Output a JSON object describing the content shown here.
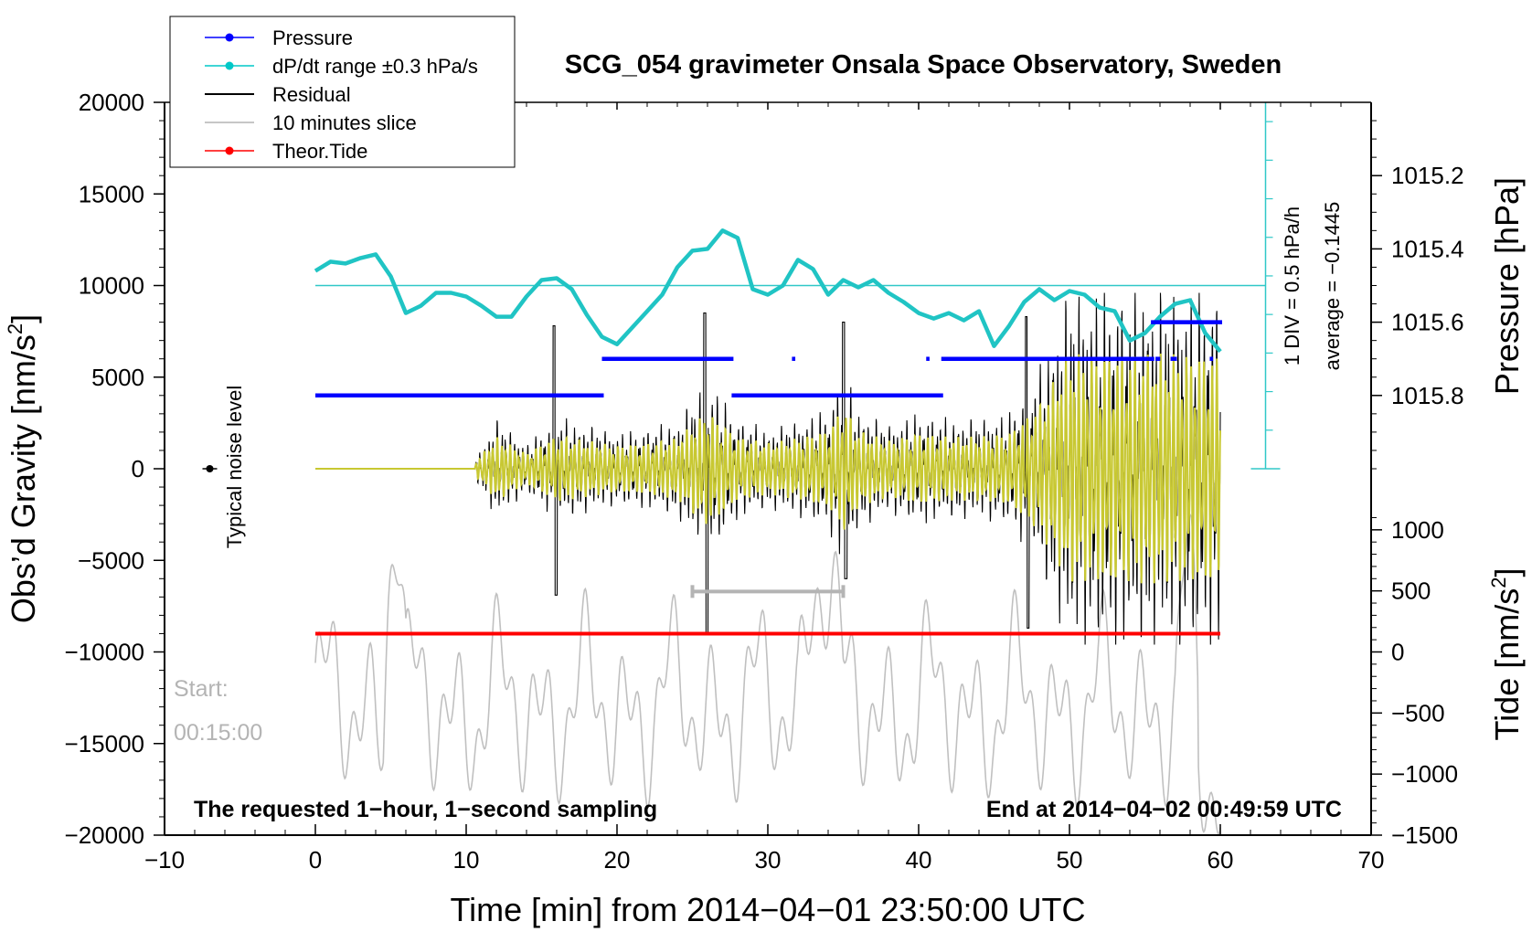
{
  "chart_data": {
    "type": "line",
    "title": "SCG_054 gravimeter Onsala Space Observatory, Sweden",
    "xlabel": "Time [min] from 2014−04−01 23:50:00 UTC",
    "ylabel_left": "Obs’d Gravity [nm/s",
    "ylabel_left_sup": "2",
    "ylabel_left_end": "]",
    "ylabel_right_pressure": "Pressure [hPa]",
    "ylabel_right_tide": "Tide [nm/s",
    "ylabel_right_tide_sup": "2",
    "ylabel_right_tide_end": "]",
    "xlim": [
      -10,
      70
    ],
    "ylim_gravity": [
      -20000,
      20000
    ],
    "ylim_pressure": [
      1015.0,
      1016.0
    ],
    "ylim_tide": [
      -1500,
      1500
    ],
    "x_ticks": [
      -10,
      0,
      10,
      20,
      30,
      40,
      50,
      60,
      70
    ],
    "x_tick_labels": [
      "−10",
      "0",
      "10",
      "20",
      "30",
      "40",
      "50",
      "60",
      "70"
    ],
    "y_ticks_gravity": [
      20000,
      15000,
      10000,
      5000,
      0,
      -5000,
      -10000,
      -15000,
      -20000
    ],
    "y_tick_labels_gravity": [
      "20000",
      "15000",
      "10000",
      "5000",
      "0",
      "−5000",
      "−10000",
      "−15000",
      "−20000"
    ],
    "pressure_ticks": [
      1015.8,
      1015.6,
      1015.4,
      1015.2
    ],
    "pressure_tick_labels": [
      "1015.8",
      "1015.6",
      "1015.4",
      "1015.2"
    ],
    "tide_ticks": [
      1000,
      500,
      0,
      -500,
      -1000,
      -1500
    ],
    "tide_tick_labels": [
      "1000",
      "500",
      "0",
      "−500",
      "−1000",
      "−1500"
    ],
    "legend": [
      {
        "label": "Pressure",
        "color": "#0000ff",
        "marker": true
      },
      {
        "label": "dP/dt range ±0.3 hPa/s",
        "color": "#00c8c8",
        "marker": true
      },
      {
        "label": "Residual",
        "color": "#000000",
        "marker": false
      },
      {
        "label": "10 minutes slice",
        "color": "#b4b4b4",
        "marker": false
      },
      {
        "label": "Theor.Tide",
        "color": "#ff0000",
        "marker": true
      }
    ],
    "pressure_segments": [
      {
        "x": [
          0,
          19
        ],
        "p": 1015.8
      },
      {
        "x": [
          19,
          27.6
        ],
        "p": 1015.7
      },
      {
        "x": [
          27.6,
          41.5
        ],
        "p": 1015.8
      },
      {
        "x": [
          31.6,
          31.7
        ],
        "p": 1015.7
      },
      {
        "x": [
          40.5,
          40.6
        ],
        "p": 1015.7
      },
      {
        "x": [
          41.5,
          55.5
        ],
        "p": 1015.7
      },
      {
        "x": [
          55.7,
          55.9
        ],
        "p": 1015.7
      },
      {
        "x": [
          56.7,
          57.0
        ],
        "p": 1015.7
      },
      {
        "x": [
          59.3,
          59.4
        ],
        "p": 1015.7
      },
      {
        "x": [
          55.4,
          60
        ],
        "p": 1015.6
      }
    ],
    "dpdt_series": {
      "x": [
        0,
        1,
        2,
        3,
        4,
        5,
        6,
        7,
        8,
        9,
        10,
        11,
        12,
        13,
        14,
        15,
        16,
        17,
        18,
        19,
        20,
        21,
        22,
        23,
        24,
        25,
        26,
        27,
        28,
        29,
        30,
        31,
        32,
        33,
        34,
        35,
        36,
        37,
        38,
        39,
        40,
        41,
        42,
        43,
        44,
        45,
        46,
        47,
        48,
        49,
        50,
        51,
        52,
        53,
        54,
        55,
        56,
        57,
        58,
        59,
        60
      ],
      "y": [
        10800,
        11300,
        11200,
        11500,
        11700,
        10500,
        8500,
        8900,
        9600,
        9600,
        9400,
        8900,
        8300,
        8300,
        9400,
        10300,
        10400,
        9800,
        8400,
        7200,
        6800,
        7700,
        8600,
        9500,
        11000,
        11900,
        12000,
        13000,
        12600,
        9800,
        9500,
        10000,
        11400,
        10900,
        9500,
        10300,
        9900,
        10300,
        9600,
        9100,
        8500,
        8200,
        8500,
        8100,
        8600,
        6700,
        7800,
        9100,
        9800,
        9200,
        9700,
        9500,
        8800,
        8600,
        7000,
        7400,
        8300,
        9000,
        9200,
        7400,
        6400
      ]
    },
    "dpdt_reference_level": 10000,
    "residual_note": "Residual (black) and filtered residual (yellow) oscillate around 0 from ~10.6 min to 60 min, with envelope growing to ±9000 after 50 min",
    "residual_envelope": {
      "x": [
        10.6,
        12,
        14,
        16,
        18,
        20,
        22,
        24,
        26,
        28,
        30,
        32,
        34,
        35,
        36,
        38,
        40,
        42,
        44,
        46,
        48,
        50,
        52,
        54,
        56,
        58,
        60
      ],
      "amp": [
        500,
        2500,
        1200,
        2600,
        2200,
        1800,
        2000,
        2400,
        4500,
        2500,
        2000,
        2400,
        3000,
        5000,
        3000,
        2200,
        2800,
        2500,
        2500,
        2800,
        5000,
        9000,
        9000,
        9000,
        9000,
        9000,
        9000
      ]
    },
    "tide_value": 150,
    "slice_bar_x": [
      25,
      35
    ],
    "slice_bar_y": -6700,
    "typical_noise_x": -7,
    "typical_noise_y": 0,
    "typical_noise_label": "Typical noise level",
    "pressure_scale_label_1": "1 DIV = 0.5 hPa/h",
    "pressure_scale_label_2": "average = −0.1445",
    "start_label": "Start:",
    "start_time": "00:15:00",
    "note_left": "The requested 1−hour, 1−second sampling",
    "note_right": "End at 2014−04−02 00:49:59 UTC"
  }
}
